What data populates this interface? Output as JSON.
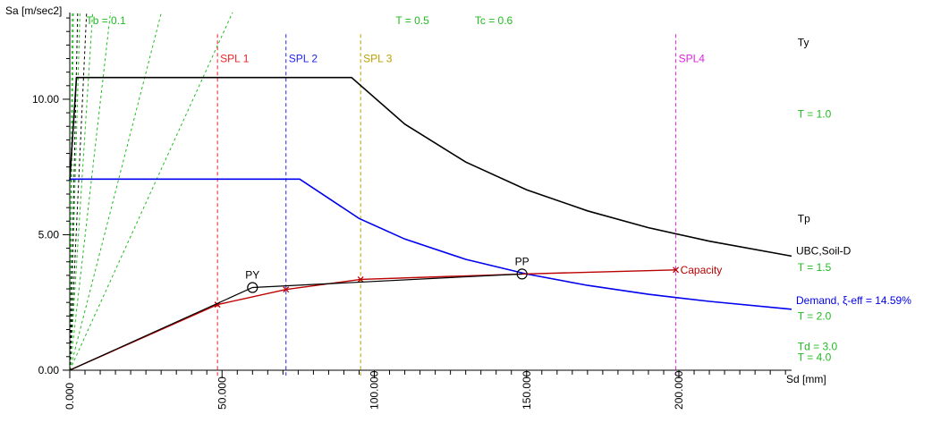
{
  "chart_data": {
    "type": "line",
    "ylabel": "Sa [m/sec2]",
    "xlabel": "Sd [mm]",
    "xlim": [
      0,
      237
    ],
    "ylim": [
      -0.2,
      13.2
    ],
    "x_ticks": {
      "major": [
        0,
        50,
        100,
        150,
        200
      ],
      "labels": [
        "0.000",
        "50.000",
        "100.000",
        "150.000",
        "200.000"
      ]
    },
    "y_ticks": {
      "major": [
        0,
        5,
        10
      ],
      "labels": [
        "0.00",
        "5.00",
        "10.00"
      ]
    },
    "grid": false,
    "colors": {
      "spectrum": "#000000",
      "demand": "#0000ee",
      "capacity": "#bb0000",
      "period_lines": "#22bb22",
      "bilinear": "#000000"
    },
    "series": [
      {
        "name": "UBC,Soil-D",
        "role": "elastic-spectrum",
        "points": [
          [
            0,
            7.0
          ],
          [
            2.2,
            10.8
          ],
          [
            92.5,
            10.8
          ],
          [
            110,
            9.08
          ],
          [
            130,
            7.68
          ],
          [
            150,
            6.66
          ],
          [
            170,
            5.88
          ],
          [
            190,
            5.26
          ],
          [
            210,
            4.76
          ],
          [
            237,
            4.21
          ]
        ]
      },
      {
        "name": "Demand, ξ-eff = 14.59%",
        "role": "demand-spectrum",
        "points": [
          [
            0,
            7.05
          ],
          [
            75.5,
            7.05
          ],
          [
            95,
            5.6
          ],
          [
            110,
            4.84
          ],
          [
            130,
            4.09
          ],
          [
            150,
            3.55
          ],
          [
            170,
            3.13
          ],
          [
            190,
            2.8
          ],
          [
            210,
            2.54
          ],
          [
            237,
            2.25
          ]
        ]
      },
      {
        "name": "Capacity",
        "role": "capacity-curve",
        "points": [
          [
            0,
            0
          ],
          [
            48.5,
            2.42
          ],
          [
            71,
            2.98
          ],
          [
            95.5,
            3.35
          ],
          [
            148.5,
            3.55
          ],
          [
            199,
            3.7
          ]
        ],
        "markers": [
          [
            48.5,
            2.42
          ],
          [
            71,
            2.98
          ],
          [
            95.5,
            3.35
          ],
          [
            199,
            3.7
          ]
        ]
      },
      {
        "name": "bilinear",
        "role": "bilinear-idealization",
        "points": [
          [
            0,
            0
          ],
          [
            60,
            3.05
          ],
          [
            148.5,
            3.55
          ]
        ]
      }
    ],
    "period_lines": [
      {
        "label": "Tb = 0.1",
        "slope": 394.78,
        "label_sd": 5.4,
        "label_sa": 12.9,
        "color": "#22bb22"
      },
      {
        "label": "T = 0.5",
        "slope": 15.79,
        "label_sd": 107,
        "label_sa": 12.9,
        "color": "#22bb22"
      },
      {
        "label": "Tc = 0.6",
        "slope": 10.97,
        "label_sd": 133,
        "label_sa": 12.9,
        "color": "#22bb22"
      },
      {
        "label": "T = 1.0",
        "slope": 3.95,
        "label_sd": 239,
        "label_sa": 9.45,
        "color": "#22bb22"
      },
      {
        "label": "T = 1.5",
        "slope": 1.755,
        "label_sd": 239,
        "label_sa": 3.8,
        "color": "#22bb22"
      },
      {
        "label": "T = 2.0",
        "slope": 0.987,
        "label_sd": 239,
        "label_sa": 2.0,
        "color": "#22bb22"
      },
      {
        "label": "Td = 3.0",
        "slope": 0.439,
        "label_sd": 239,
        "label_sa": 0.88,
        "color": "#22bb22"
      },
      {
        "label": "T = 4.0",
        "slope": 0.247,
        "label_sd": 239,
        "label_sa": 0.48,
        "color": "#22bb22"
      },
      {
        "label": "Ty",
        "slope": 5.08,
        "label_sd": 239,
        "label_sa": 12.1,
        "color": "#000000"
      },
      {
        "label": "Tp",
        "slope": 2.39,
        "label_sd": 239,
        "label_sa": 5.6,
        "color": "#000000"
      }
    ],
    "spl_lines": [
      {
        "label": "SPL 1",
        "sd": 48.5,
        "color": "#ee2222"
      },
      {
        "label": "SPL 2",
        "sd": 71,
        "color": "#2222ee"
      },
      {
        "label": "SPL 3",
        "sd": 95.5,
        "color": "#bba000"
      },
      {
        "label": "SPL4",
        "sd": 199,
        "color": "#dd22dd"
      }
    ],
    "points_of_interest": [
      {
        "label": "PY",
        "sd": 60,
        "sa": 3.05
      },
      {
        "label": "PP",
        "sd": 148.5,
        "sa": 3.55
      }
    ],
    "annotations": [
      {
        "text": "UBC,Soil-D",
        "sd": 237,
        "sa": 4.21,
        "color": "#000000"
      },
      {
        "text": "Capacity",
        "sd": 199,
        "sa": 3.7,
        "color": "#bb0000"
      },
      {
        "text": "Demand, ξ-eff = 14.59%",
        "sd": 237,
        "sa": 2.25,
        "color": "#0000ee"
      }
    ]
  }
}
